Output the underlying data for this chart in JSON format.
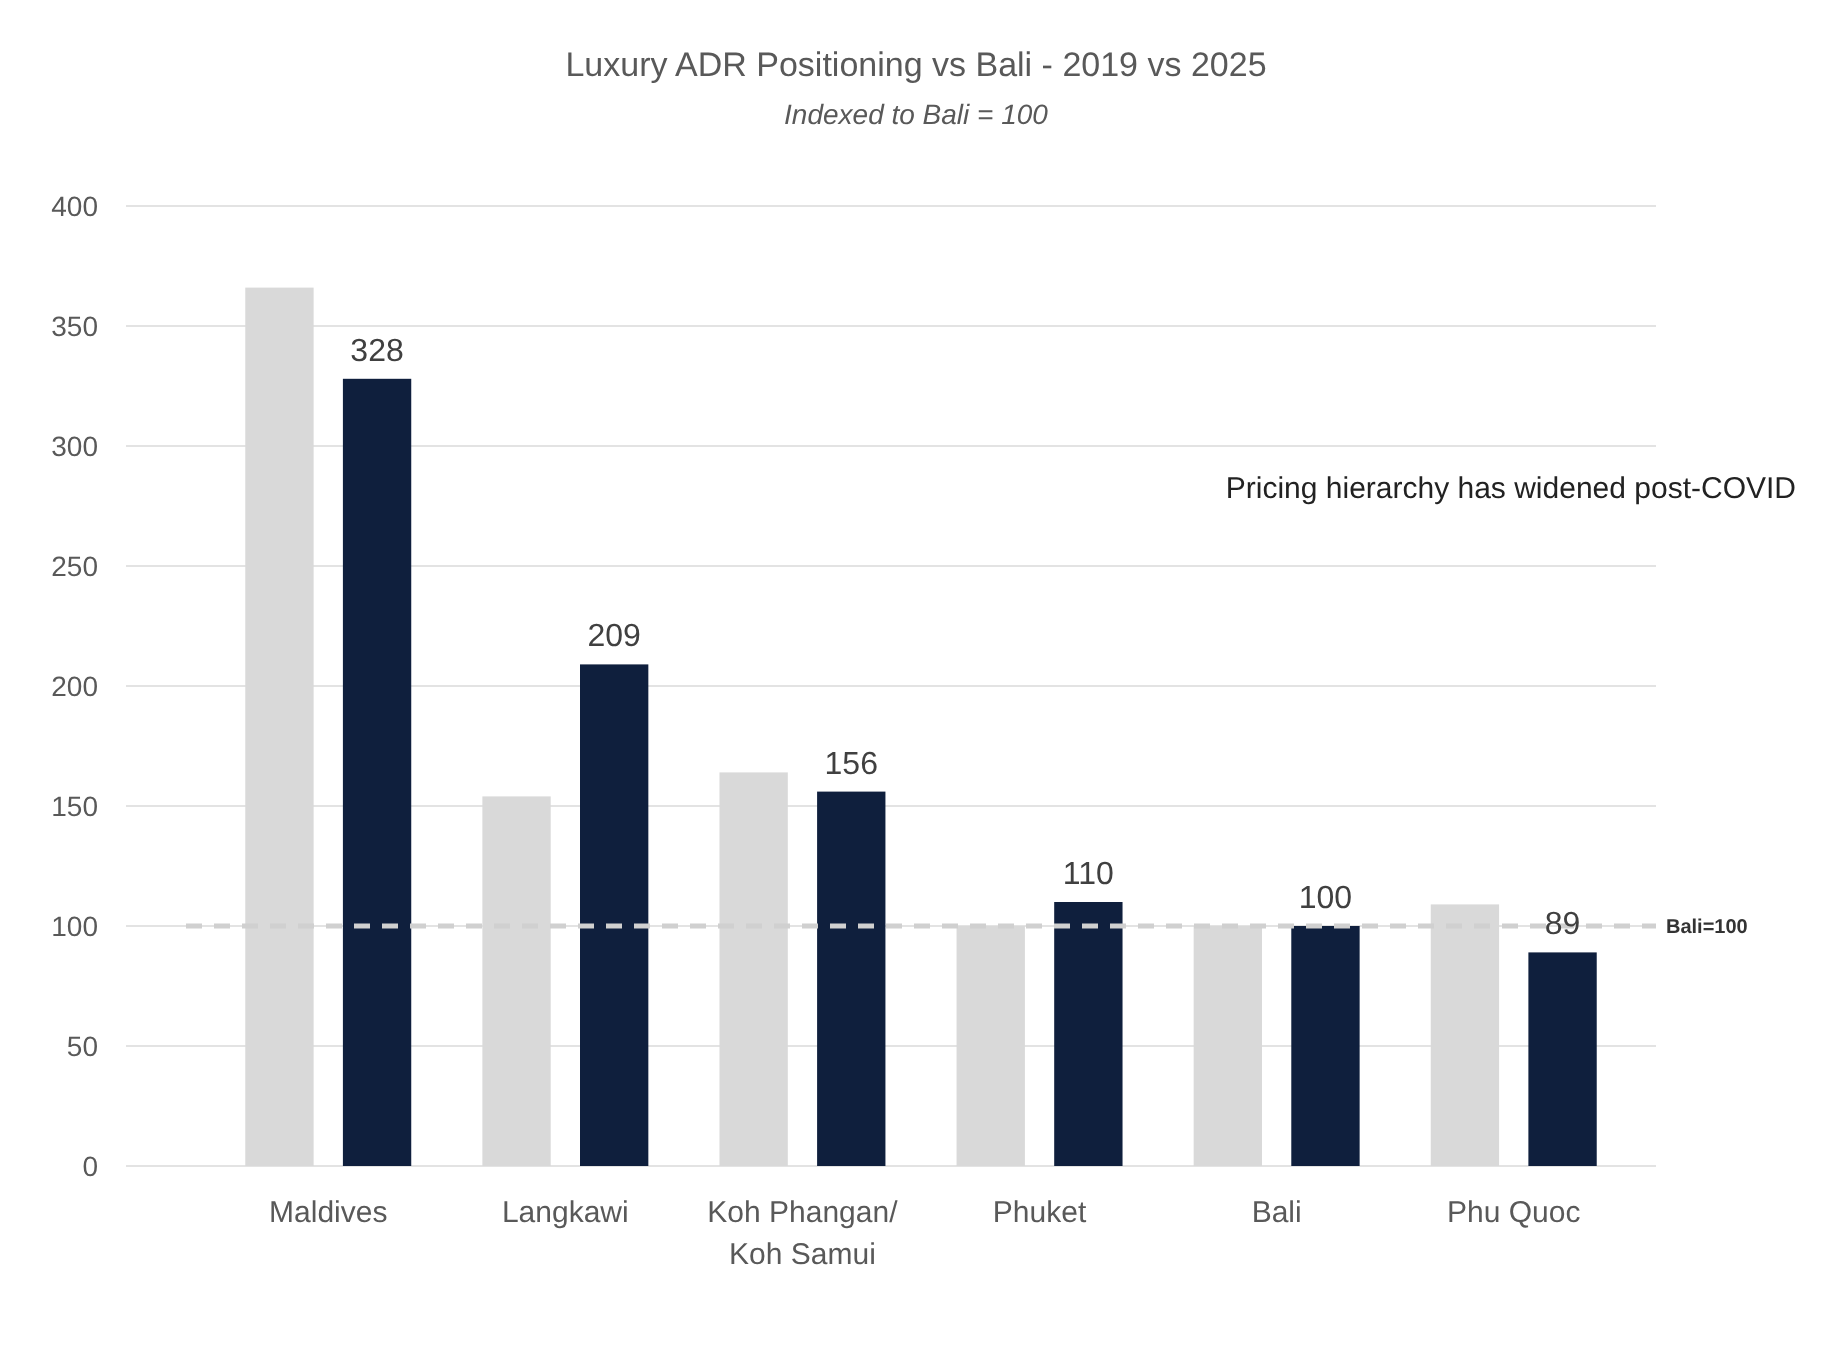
{
  "chart_data": {
    "type": "bar",
    "title": "Luxury ADR Positioning vs Bali - 2019 vs 2025",
    "subtitle": "Indexed to Bali = 100",
    "categories": [
      "Maldives",
      "Langkawi",
      "Koh Phangan/Koh Samui",
      "Phuket",
      "Bali",
      "Phu Quoc"
    ],
    "series": [
      {
        "color": "#d9d9d9",
        "values": [
          366,
          154,
          164,
          100,
          100,
          109
        ]
      },
      {
        "color": "#0f1f3d",
        "values": [
          328,
          209,
          156,
          110,
          100,
          89
        ],
        "value_labels": [
          "328",
          "209",
          "156",
          "110",
          "100",
          "89"
        ]
      }
    ],
    "ylim": [
      0,
      400
    ],
    "yticks": [
      0,
      50,
      100,
      150,
      200,
      250,
      300,
      350,
      400
    ],
    "grid": "y",
    "ref_lines": [
      {
        "axis": "y",
        "value": 100,
        "label": "Bali=100",
        "color": "#d0d0d0",
        "line_style": "dashed"
      }
    ],
    "annotations": [
      "Pricing hierarchy has widened post-COVID"
    ]
  }
}
